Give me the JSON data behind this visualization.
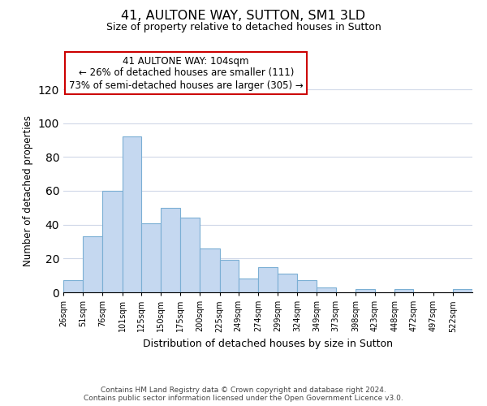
{
  "title": "41, AULTONE WAY, SUTTON, SM1 3LD",
  "subtitle": "Size of property relative to detached houses in Sutton",
  "xlabel": "Distribution of detached houses by size in Sutton",
  "ylabel": "Number of detached properties",
  "bar_labels": [
    "26sqm",
    "51sqm",
    "76sqm",
    "101sqm",
    "125sqm",
    "150sqm",
    "175sqm",
    "200sqm",
    "225sqm",
    "249sqm",
    "274sqm",
    "299sqm",
    "324sqm",
    "349sqm",
    "373sqm",
    "398sqm",
    "423sqm",
    "448sqm",
    "472sqm",
    "497sqm",
    "522sqm"
  ],
  "bar_values": [
    7,
    33,
    60,
    92,
    41,
    50,
    44,
    26,
    19,
    8,
    15,
    11,
    7,
    3,
    0,
    2,
    0,
    2,
    0,
    0,
    2
  ],
  "bar_color": "#c5d8f0",
  "bar_edge_color": "#7bafd4",
  "ylim": [
    0,
    120
  ],
  "yticks": [
    0,
    20,
    40,
    60,
    80,
    100,
    120
  ],
  "annotation_title": "41 AULTONE WAY: 104sqm",
  "annotation_line1": "← 26% of detached houses are smaller (111)",
  "annotation_line2": "73% of semi-detached houses are larger (305) →",
  "annotation_box_color": "#ffffff",
  "annotation_box_edge_color": "#cc0000",
  "footer_line1": "Contains HM Land Registry data © Crown copyright and database right 2024.",
  "footer_line2": "Contains public sector information licensed under the Open Government Licence v3.0.",
  "background_color": "#ffffff",
  "grid_color": "#d0d8e8",
  "bin_edges": [
    26,
    51,
    76,
    101,
    125,
    150,
    175,
    200,
    225,
    249,
    274,
    299,
    324,
    349,
    373,
    398,
    423,
    448,
    472,
    497,
    522,
    547
  ]
}
